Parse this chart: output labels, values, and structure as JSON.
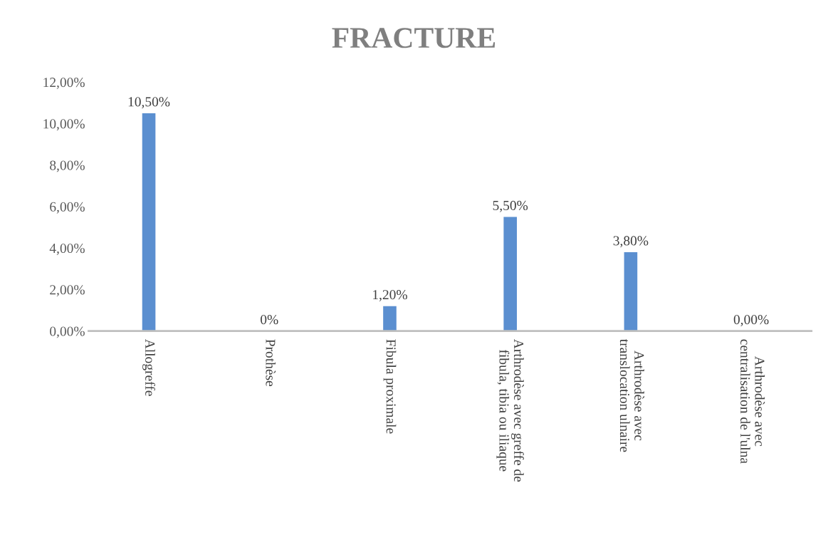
{
  "chart_data": {
    "type": "bar",
    "title": "FRACTURE",
    "categories": [
      "Allogreffe",
      "Prothèse",
      "Fibula proximale",
      "Arthrodèse avec greffe de fibula, tibia ou iliaque",
      "Arthrodèse avec translocation ulnaire",
      "Arthrodèse avec centralisation de l'ulna"
    ],
    "values": [
      10.5,
      0,
      1.2,
      5.5,
      3.8,
      0
    ],
    "value_labels": [
      "10,50%",
      "0%",
      "1,20%",
      "5,50%",
      "3,80%",
      "0,00%"
    ],
    "color": "#5b8fd0",
    "ylim": [
      0,
      12
    ],
    "yticks": [
      {
        "value": 0,
        "label": "0,00%"
      },
      {
        "value": 2,
        "label": "2,00%"
      },
      {
        "value": 4,
        "label": "4,00%"
      },
      {
        "value": 6,
        "label": "6,00%"
      },
      {
        "value": 8,
        "label": "8,00%"
      },
      {
        "value": 10,
        "label": "10,00%"
      },
      {
        "value": 12,
        "label": "12,00%"
      }
    ],
    "grid": false,
    "legend": false
  }
}
